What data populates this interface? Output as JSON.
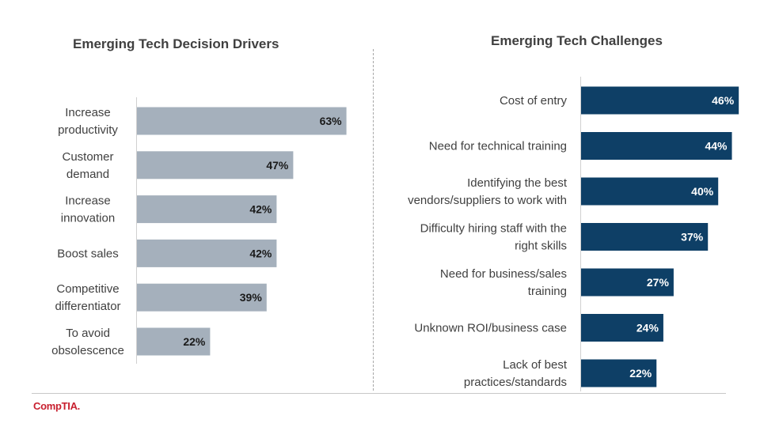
{
  "footer": {
    "logo_text": "CompTIA",
    "logo_dot": "."
  },
  "colors": {
    "left_bar": "#a5b0bc",
    "right_bar": "#0e3f66",
    "left_label": "#1a1a1a",
    "right_label": "#ffffff"
  },
  "chart_data": [
    {
      "type": "bar",
      "orientation": "horizontal",
      "title": "Emerging Tech Decision Drivers",
      "categories": [
        [
          "Increase",
          "productivity"
        ],
        [
          "Customer",
          "demand"
        ],
        [
          "Increase",
          "innovation"
        ],
        [
          "Boost sales"
        ],
        [
          "Competitive",
          "differentiator"
        ],
        [
          "To avoid",
          "obsolescence"
        ]
      ],
      "values": [
        63,
        47,
        42,
        42,
        39,
        22
      ],
      "labels": [
        "63%",
        "47%",
        "42%",
        "42%",
        "39%",
        "22%"
      ],
      "unit": "%",
      "xlim": [
        0,
        100
      ]
    },
    {
      "type": "bar",
      "orientation": "horizontal",
      "title": "Emerging Tech Challenges",
      "categories": [
        [
          "Cost of entry"
        ],
        [
          "Need for technical training"
        ],
        [
          "Identifying the best",
          "vendors/suppliers to work with"
        ],
        [
          "Difficulty hiring staff with the",
          "right skills"
        ],
        [
          "Need for business/sales",
          "training"
        ],
        [
          "Unknown ROI/business case"
        ],
        [
          "Lack of best",
          "practices/standards"
        ]
      ],
      "values": [
        46,
        44,
        40,
        37,
        27,
        24,
        22
      ],
      "labels": [
        "46%",
        "44%",
        "40%",
        "37%",
        "27%",
        "24%",
        "22%"
      ],
      "unit": "%",
      "xlim": [
        0,
        100
      ]
    }
  ]
}
